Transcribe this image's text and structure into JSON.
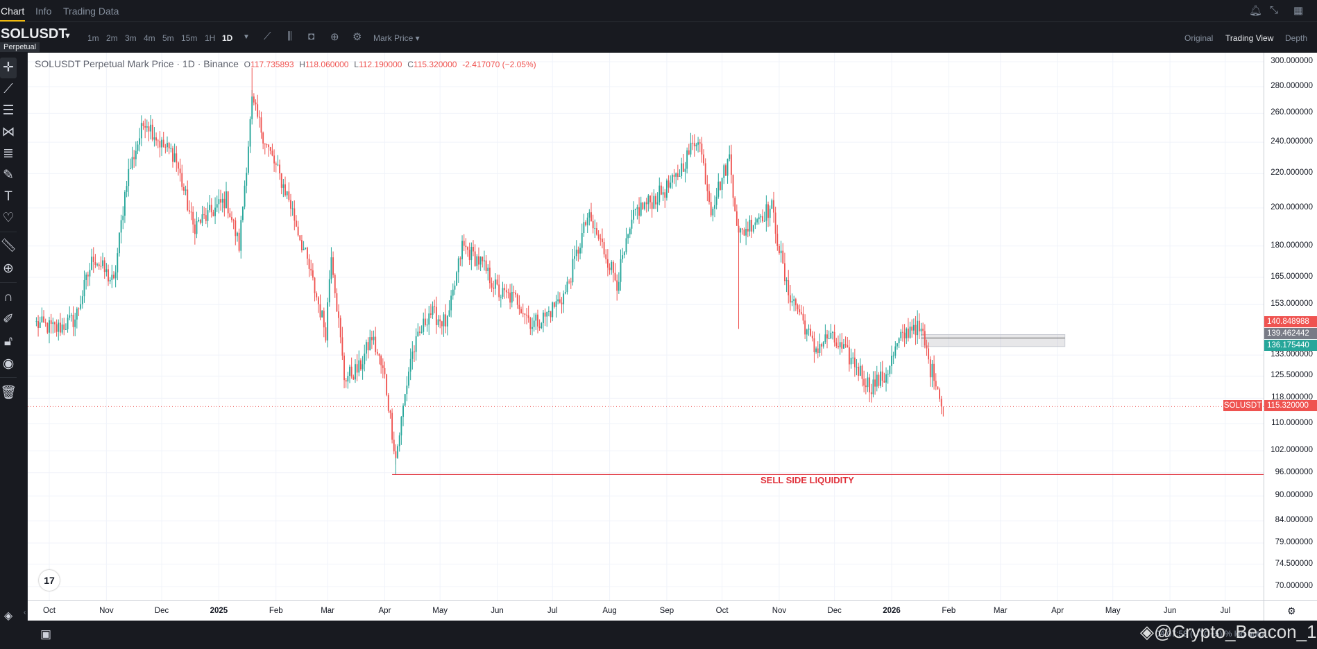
{
  "tabs": [
    "Chart",
    "Info",
    "Trading Data"
  ],
  "symbol": "SOLUSDT",
  "contract_type": "Perpetual",
  "timeframes": [
    "1m",
    "2m",
    "3m",
    "4m",
    "5m",
    "15m",
    "1H",
    "1D"
  ],
  "active_timeframe": "1D",
  "price_type": "Mark Price",
  "views": [
    "Original",
    "Trading View",
    "Depth"
  ],
  "active_view": "Trading View",
  "legend": {
    "title": "SOLUSDT Perpetual Mark Price · 1D · Binance",
    "o_label": "O",
    "o": "117.735893",
    "h_label": "H",
    "h": "118.060000",
    "l_label": "L",
    "l": "112.190000",
    "c_label": "C",
    "c": "115.320000",
    "change": "-2.417070 (−2.05%)"
  },
  "price_axis_labels": [
    "300.000000",
    "280.000000",
    "260.000000",
    "240.000000",
    "220.000000",
    "200.000000",
    "180.000000",
    "165.000000",
    "153.000000",
    "133.000000",
    "125.500000",
    "118.000000",
    "110.000000",
    "102.000000",
    "96.000000",
    "90.000000",
    "84.000000",
    "79.000000",
    "74.500000",
    "70.000000"
  ],
  "price_tags": {
    "red_upper": "140.848988",
    "gray_mid": "139.462442",
    "teal_lower": "136.175440",
    "symbol_tag": "SOLUSDT",
    "last_price": "115.320000"
  },
  "time_axis_labels": [
    "Oct",
    "Nov",
    "Dec",
    "2025",
    "Feb",
    "Mar",
    "Apr",
    "May",
    "Jun",
    "Jul",
    "Aug",
    "Sep",
    "Oct",
    "Nov",
    "Dec",
    "2026",
    "Feb",
    "Mar",
    "Apr",
    "May",
    "Jun",
    "Jul"
  ],
  "annotations": {
    "sell_side_liquidity": "SELL SIDE LIQUIDITY"
  },
  "watermark": "@Crypto_Beacon_1",
  "bottom_status": "04:07:58 (UTC+5)   %   log   auto",
  "colors": {
    "up": "#26a69a",
    "down": "#ef5350",
    "liquidity": "#e0303a",
    "accent": "#f0b90b"
  },
  "chart_data": {
    "type": "candlestick",
    "interval": "1D",
    "y_scale": "log",
    "ylim": [
      66,
      305
    ],
    "x_start": "2024-09-24",
    "x_end": "2026-01-28",
    "close_series": [
      [
        "2024-09-24",
        145
      ],
      [
        "2024-10-05",
        143
      ],
      [
        "2024-10-15",
        147
      ],
      [
        "2024-10-25",
        175
      ],
      [
        "2024-11-05",
        162
      ],
      [
        "2024-11-12",
        217
      ],
      [
        "2024-11-22",
        256
      ],
      [
        "2024-12-01",
        238
      ],
      [
        "2024-12-08",
        232
      ],
      [
        "2024-12-18",
        190
      ],
      [
        "2024-12-25",
        195
      ],
      [
        "2025-01-05",
        205
      ],
      [
        "2025-01-12",
        180
      ],
      [
        "2025-01-19",
        268
      ],
      [
        "2025-01-27",
        238
      ],
      [
        "2025-02-08",
        205
      ],
      [
        "2025-02-18",
        172
      ],
      [
        "2025-02-28",
        142
      ],
      [
        "2025-03-03",
        178
      ],
      [
        "2025-03-10",
        125
      ],
      [
        "2025-03-18",
        128
      ],
      [
        "2025-03-25",
        140
      ],
      [
        "2025-04-01",
        125
      ],
      [
        "2025-04-07",
        100
      ],
      [
        "2025-04-15",
        132
      ],
      [
        "2025-04-25",
        150
      ],
      [
        "2025-05-05",
        145
      ],
      [
        "2025-05-13",
        180
      ],
      [
        "2025-05-23",
        172
      ],
      [
        "2025-06-02",
        158
      ],
      [
        "2025-06-12",
        155
      ],
      [
        "2025-06-20",
        145
      ],
      [
        "2025-06-27",
        148
      ],
      [
        "2025-07-08",
        158
      ],
      [
        "2025-07-20",
        195
      ],
      [
        "2025-07-28",
        180
      ],
      [
        "2025-08-05",
        163
      ],
      [
        "2025-08-15",
        198
      ],
      [
        "2025-08-25",
        205
      ],
      [
        "2025-09-05",
        215
      ],
      [
        "2025-09-18",
        245
      ],
      [
        "2025-09-25",
        200
      ],
      [
        "2025-10-05",
        230
      ],
      [
        "2025-10-10",
        185
      ],
      [
        "2025-10-20",
        195
      ],
      [
        "2025-10-28",
        200
      ],
      [
        "2025-11-05",
        160
      ],
      [
        "2025-11-12",
        150
      ],
      [
        "2025-11-20",
        135
      ],
      [
        "2025-11-28",
        140
      ],
      [
        "2025-12-05",
        135
      ],
      [
        "2025-12-12",
        130
      ],
      [
        "2025-12-20",
        122
      ],
      [
        "2025-12-28",
        125
      ],
      [
        "2026-01-05",
        138
      ],
      [
        "2026-01-13",
        145
      ],
      [
        "2026-01-18",
        140
      ],
      [
        "2026-01-22",
        128
      ],
      [
        "2026-01-25",
        125
      ],
      [
        "2026-01-28",
        115.32
      ]
    ],
    "horizontal_lines": [
      {
        "price": 95.5,
        "label": "SELL SIDE LIQUIDITY",
        "from": "2025-04-05",
        "to": "2026-07-25"
      }
    ],
    "zone": {
      "from": "2026-01-17",
      "to": "2026-04-05",
      "top": 140.8,
      "mid": 139.46,
      "bottom": 136.2
    },
    "last_price": 115.32
  }
}
